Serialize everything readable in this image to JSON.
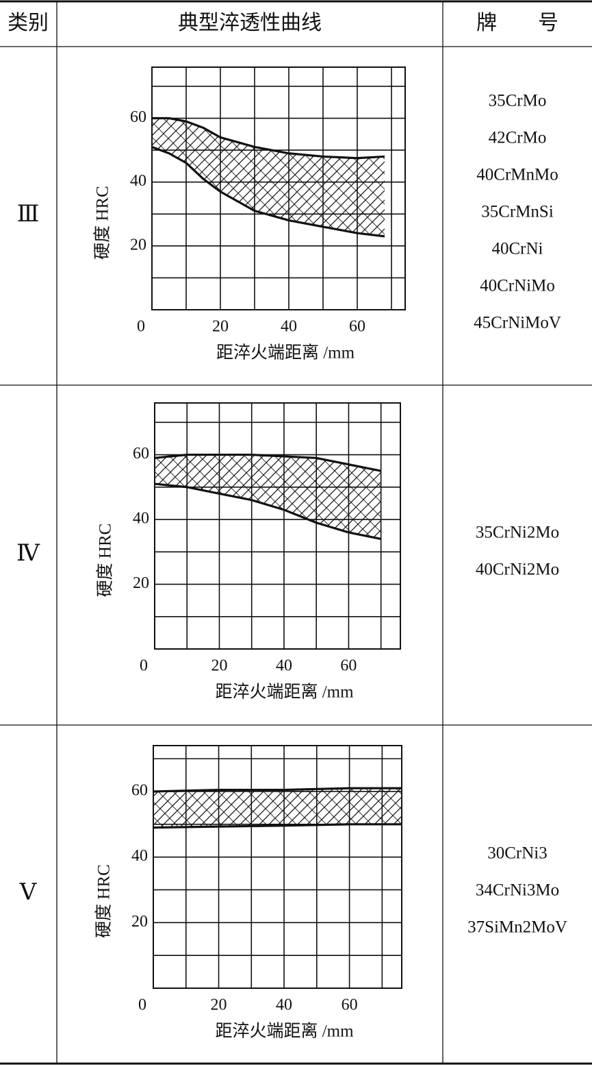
{
  "table": {
    "header": [
      "类别",
      "典型淬透性曲线",
      "牌　　号"
    ],
    "rows": [
      {
        "class": "Ⅲ",
        "chart": {
          "type": "band",
          "ylabel": "硬度 HRC",
          "xlabel": "距淬火端距离 /mm",
          "xlim": [
            0,
            74
          ],
          "ylim": [
            0,
            76
          ],
          "xticks": [
            0,
            20,
            40,
            60
          ],
          "yticks": [
            20,
            40,
            60
          ],
          "xgrid": [
            10,
            20,
            30,
            40,
            50,
            60,
            70
          ],
          "ygrid": [
            10,
            20,
            30,
            40,
            50,
            60,
            70
          ],
          "x": [
            0,
            5,
            10,
            15,
            20,
            30,
            40,
            50,
            60,
            68
          ],
          "upper": [
            60,
            60,
            59,
            57,
            54,
            51,
            49,
            48,
            47.5,
            48
          ],
          "lower": [
            51,
            49,
            46,
            41,
            37,
            31,
            28,
            26,
            24,
            23
          ]
        },
        "grades": [
          "35CrMo",
          "42CrMo",
          "40CrMnMo",
          "35CrMnSi",
          "40CrNi",
          "40CrNiMo",
          "45CrNiMoV"
        ]
      },
      {
        "class": "Ⅳ",
        "chart": {
          "type": "band",
          "ylabel": "硬度 HRC",
          "xlabel": "距淬火端距离 /mm",
          "xlim": [
            0,
            76
          ],
          "ylim": [
            0,
            76
          ],
          "xticks": [
            0,
            20,
            40,
            60
          ],
          "yticks": [
            20,
            40,
            60
          ],
          "xgrid": [
            10,
            20,
            30,
            40,
            50,
            60,
            70
          ],
          "ygrid": [
            10,
            20,
            30,
            40,
            50,
            60,
            70
          ],
          "x": [
            0,
            10,
            20,
            30,
            40,
            50,
            60,
            70
          ],
          "upper": [
            59,
            60,
            60,
            60,
            59.5,
            59,
            57,
            55
          ],
          "lower": [
            51,
            50,
            48,
            46,
            43,
            39,
            36,
            34
          ]
        },
        "grades": [
          "35CrNi2Mo",
          "40CrNi2Mo"
        ]
      },
      {
        "class": "Ⅴ",
        "chart": {
          "type": "band",
          "ylabel": "硬度 HRC",
          "xlabel": "距淬火端距离 /mm",
          "xlim": [
            0,
            76
          ],
          "ylim": [
            0,
            74
          ],
          "xticks": [
            0,
            20,
            40,
            60
          ],
          "yticks": [
            20,
            40,
            60
          ],
          "xgrid": [
            10,
            20,
            30,
            40,
            50,
            60,
            70
          ],
          "ygrid": [
            10,
            20,
            30,
            40,
            50,
            60,
            70
          ],
          "x": [
            0,
            20,
            40,
            60,
            76
          ],
          "upper": [
            60,
            60.5,
            60.5,
            61,
            61
          ],
          "lower": [
            49,
            49.3,
            49.6,
            50,
            50
          ]
        },
        "grades": [
          "30CrNi3",
          "34CrNi3Mo",
          "37SiMn2MoV"
        ]
      }
    ]
  }
}
